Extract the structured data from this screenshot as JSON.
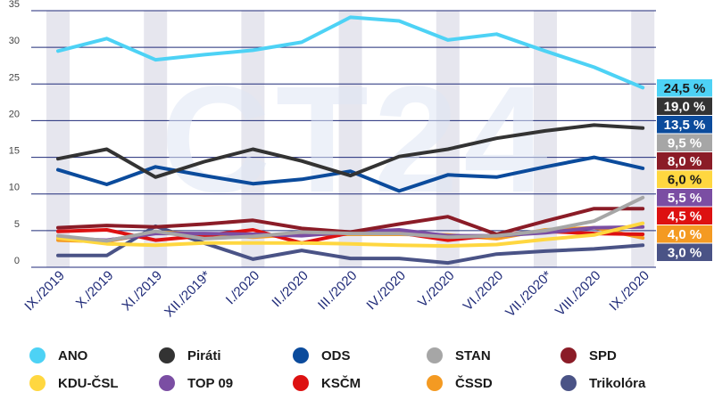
{
  "chart_data": {
    "type": "line",
    "categories": [
      "IX./2019",
      "X./2019",
      "XI./2019",
      "XII./2019*",
      "I./2020",
      "II./2020",
      "III./2020",
      "IV./2020",
      "V./2020",
      "VI./2020",
      "VII./2020*",
      "VIII./2020",
      "IX./2020"
    ],
    "ylim": [
      0,
      35
    ],
    "yticks": [
      0,
      5,
      10,
      15,
      20,
      25,
      30,
      35
    ],
    "watermark": "CT24",
    "series": [
      {
        "name": "ANO",
        "color": "#4dd2f5",
        "final_label": "24,5 %",
        "values": [
          29.5,
          31.2,
          28.3,
          29.0,
          29.6,
          30.7,
          34.1,
          33.6,
          31.0,
          31.8,
          29.5,
          27.3,
          24.5
        ]
      },
      {
        "name": "Piráti",
        "color": "#333333",
        "final_label": "19,0 %",
        "values": [
          14.8,
          16.1,
          12.3,
          14.4,
          16.1,
          14.5,
          12.5,
          15.1,
          16.1,
          17.6,
          18.6,
          19.4,
          19.0
        ]
      },
      {
        "name": "ODS",
        "color": "#0b4b9c",
        "final_label": "13,5 %",
        "values": [
          13.3,
          11.3,
          13.7,
          12.5,
          11.4,
          12.0,
          13.1,
          10.4,
          12.6,
          12.3,
          13.7,
          15.0,
          13.5
        ]
      },
      {
        "name": "STAN",
        "color": "#a6a6a6",
        "final_label": "9,5 %",
        "values": [
          4.3,
          3.6,
          4.9,
          3.9,
          4.2,
          4.8,
          4.6,
          4.6,
          4.1,
          4.3,
          5.0,
          6.3,
          9.5
        ]
      },
      {
        "name": "SPD",
        "color": "#8b1c27",
        "final_label": "8,0 %",
        "values": [
          5.4,
          5.7,
          5.5,
          5.9,
          6.4,
          5.3,
          4.8,
          5.9,
          6.9,
          4.5,
          6.3,
          8.0,
          8.0
        ]
      },
      {
        "name": "KDU-ČSL",
        "color": "#ffd740",
        "final_label": "6,0 %",
        "values": [
          4.0,
          3.2,
          3.0,
          3.3,
          3.3,
          3.3,
          3.2,
          3.0,
          2.9,
          3.1,
          3.8,
          4.4,
          6.0
        ]
      },
      {
        "name": "TOP 09",
        "color": "#7b4ea3",
        "final_label": "5,5 %",
        "values": [
          4.0,
          3.7,
          4.6,
          4.6,
          4.5,
          4.3,
          4.8,
          5.1,
          4.3,
          4.3,
          4.7,
          5.4,
          5.5
        ]
      },
      {
        "name": "KSČM",
        "color": "#dd1111",
        "final_label": "4,5 %",
        "values": [
          4.9,
          5.1,
          3.7,
          4.3,
          5.1,
          3.3,
          4.7,
          4.7,
          3.7,
          4.4,
          4.9,
          4.6,
          4.5
        ]
      },
      {
        "name": "ČSSD",
        "color": "#f49a22",
        "final_label": "4,0 %",
        "values": [
          3.7,
          3.5,
          4.8,
          4.5,
          4.1,
          4.5,
          4.5,
          4.5,
          4.4,
          3.9,
          5.1,
          5.4,
          4.0
        ]
      },
      {
        "name": "Trikolóra",
        "color": "#4a5386",
        "final_label": "3,0 %",
        "values": [
          1.6,
          1.6,
          5.6,
          3.3,
          1.1,
          2.3,
          1.2,
          1.2,
          0.6,
          1.8,
          2.2,
          2.5,
          3.0
        ]
      }
    ]
  }
}
